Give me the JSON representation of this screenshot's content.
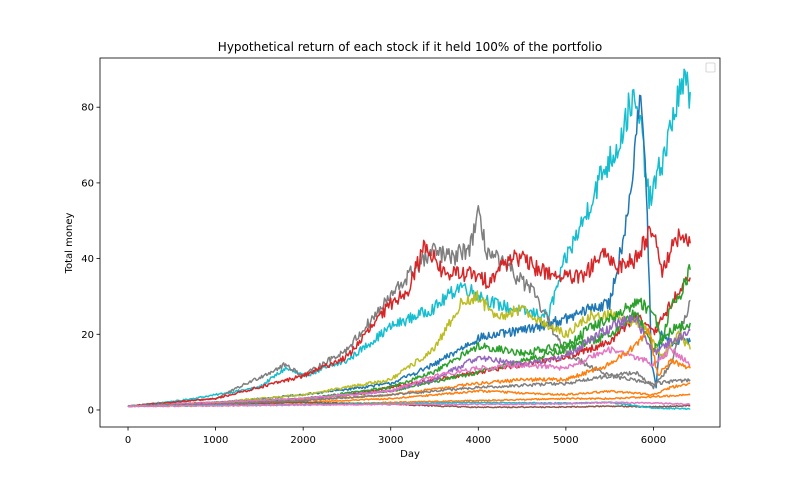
{
  "chart_data": {
    "type": "line",
    "title": "Hypothetical return of each stock if it held 100% of the portfolio",
    "xlabel": "Day",
    "ylabel": "Total money",
    "xlim": [
      -320,
      6760
    ],
    "ylim": [
      -4.5,
      93
    ],
    "xticks": [
      0,
      1000,
      2000,
      3000,
      4000,
      5000,
      6000
    ],
    "yticks": [
      0,
      20,
      40,
      60,
      80
    ],
    "grid": false,
    "legend": {
      "position": "top-right",
      "entries": []
    },
    "series": [
      {
        "color": "#17becf",
        "x": [
          0,
          600,
          1000,
          1500,
          1800,
          2000,
          2500,
          3000,
          3500,
          3800,
          4200,
          4500,
          4800,
          5000,
          5200,
          5400,
          5600,
          5750,
          5850,
          5950,
          6050,
          6150,
          6250,
          6350,
          6420
        ],
        "y": [
          1,
          2.5,
          4,
          6,
          11,
          9,
          13,
          22,
          27,
          33,
          28,
          26,
          25,
          40,
          50,
          62,
          70,
          82,
          76,
          55,
          62,
          70,
          80,
          86,
          84
        ]
      },
      {
        "color": "#1f77b4",
        "x": [
          0,
          1000,
          2000,
          3000,
          3500,
          4000,
          4500,
          5000,
          5300,
          5500,
          5650,
          5750,
          5830,
          5880,
          5930,
          5980,
          6030,
          6080,
          6150,
          6250,
          6350,
          6420
        ],
        "y": [
          1,
          2,
          4,
          7,
          12,
          19,
          21,
          24,
          27,
          28,
          45,
          60,
          80,
          77,
          50,
          12,
          6,
          20,
          19,
          17,
          19,
          18
        ]
      },
      {
        "color": "#7f7f7f",
        "x": [
          0,
          1000,
          1800,
          2000,
          2500,
          3000,
          3300,
          3500,
          3700,
          3900,
          4000,
          4100,
          4300,
          4600,
          5000,
          5500,
          5800,
          6000,
          6200,
          6420
        ],
        "y": [
          1,
          3,
          12,
          9,
          16,
          30,
          38,
          42,
          40,
          43,
          51,
          42,
          38,
          32,
          15,
          9,
          10,
          6,
          12,
          29
        ]
      },
      {
        "color": "#d62728",
        "x": [
          0,
          1000,
          2000,
          2500,
          3000,
          3200,
          3400,
          3600,
          3900,
          4100,
          4400,
          4700,
          5000,
          5200,
          5400,
          5600,
          5800,
          5900,
          6000,
          6100,
          6200,
          6300,
          6420
        ],
        "y": [
          1,
          3,
          9,
          14,
          28,
          32,
          44,
          36,
          36,
          34,
          41,
          37,
          35,
          35,
          41,
          38,
          40,
          45,
          48,
          37,
          42,
          46,
          44
        ]
      },
      {
        "color": "#d62728",
        "x": [
          0,
          1500,
          2500,
          3500,
          4000,
          4500,
          5000,
          5500,
          5800,
          6000,
          6200,
          6420
        ],
        "y": [
          1,
          2,
          4,
          8,
          10,
          12,
          14,
          18,
          25,
          20,
          28,
          35
        ]
      },
      {
        "color": "#bcbd22",
        "x": [
          0,
          1000,
          2000,
          3000,
          3500,
          3800,
          4000,
          4200,
          4500,
          4800,
          5000,
          5300,
          5600,
          5900,
          6100,
          6300,
          6420
        ],
        "y": [
          1,
          2,
          4,
          8,
          16,
          28,
          30,
          24,
          27,
          22,
          20,
          25,
          25,
          22,
          14,
          20,
          16
        ]
      },
      {
        "color": "#2ca02c",
        "x": [
          0,
          1000,
          2000,
          3000,
          3500,
          4000,
          4500,
          5000,
          5300,
          5600,
          5800,
          6000,
          6100,
          6200,
          6300,
          6420
        ],
        "y": [
          1,
          2,
          3,
          6,
          10,
          17,
          15,
          17,
          22,
          25,
          29,
          26,
          18,
          28,
          30,
          37
        ]
      },
      {
        "color": "#2ca02c",
        "x": [
          0,
          1000,
          2000,
          3000,
          4000,
          5000,
          5500,
          5800,
          6000,
          6200,
          6420
        ],
        "y": [
          1,
          1.8,
          3,
          5,
          10,
          16,
          20,
          26,
          16,
          21,
          23
        ]
      },
      {
        "color": "#9467bd",
        "x": [
          0,
          1000,
          2000,
          3000,
          3500,
          4000,
          4500,
          5000,
          5300,
          5600,
          5800,
          6000,
          6200,
          6420
        ],
        "y": [
          1,
          2,
          3,
          5,
          8,
          14,
          12,
          14,
          19,
          23,
          24,
          15,
          18,
          21
        ]
      },
      {
        "color": "#e377c2",
        "x": [
          0,
          1000,
          2000,
          3000,
          3500,
          4000,
          4500,
          5000,
          5500,
          5800,
          6000,
          6200,
          6420
        ],
        "y": [
          1,
          2,
          3,
          5,
          9,
          11,
          12,
          11,
          16,
          14,
          12,
          16,
          12
        ]
      },
      {
        "color": "#ff7f0e",
        "x": [
          0,
          1000,
          2000,
          3000,
          4000,
          4500,
          5000,
          5500,
          5800,
          5950,
          6050,
          6200,
          6420
        ],
        "y": [
          1,
          1.5,
          2.5,
          4,
          7,
          8,
          8,
          12,
          17,
          21,
          9,
          13,
          11
        ]
      },
      {
        "color": "#ff7f0e",
        "x": [
          0,
          1000,
          2000,
          3000,
          4000,
          5000,
          5500,
          6000,
          6200,
          6420
        ],
        "y": [
          1,
          1.5,
          2,
          3,
          5,
          4,
          5,
          4,
          6,
          7
        ]
      },
      {
        "color": "#ff7f0e",
        "x": [
          0,
          1000,
          2000,
          3000,
          4000,
          5000,
          5500,
          6000,
          6420
        ],
        "y": [
          1,
          1.1,
          1.5,
          2,
          2.5,
          3,
          3,
          3.5,
          4
        ]
      },
      {
        "color": "#8c564b",
        "x": [
          0,
          1000,
          2000,
          3000,
          4000,
          5000,
          5500,
          6000,
          6420
        ],
        "y": [
          1,
          1.5,
          2,
          1.5,
          0.7,
          0.8,
          1.0,
          0.8,
          1.2
        ]
      },
      {
        "color": "#7f7f7f",
        "x": [
          0,
          1000,
          2000,
          3000,
          4000,
          5000,
          5500,
          6000,
          6420
        ],
        "y": [
          1,
          1.5,
          2.5,
          4,
          6,
          7,
          9,
          7,
          8
        ]
      },
      {
        "color": "#17becf",
        "x": [
          0,
          1000,
          2000,
          3000,
          4000,
          5000,
          5500,
          6000,
          6420
        ],
        "y": [
          1,
          1.2,
          1.4,
          1.7,
          2,
          1.8,
          2,
          0.5,
          0.3
        ]
      },
      {
        "color": "#e377c2",
        "x": [
          0,
          1000,
          2000,
          3000,
          4000,
          5000,
          5500,
          6000,
          6420
        ],
        "y": [
          1,
          1.1,
          1.3,
          1.5,
          1.5,
          1.6,
          2,
          1.8,
          1.5
        ]
      }
    ]
  }
}
